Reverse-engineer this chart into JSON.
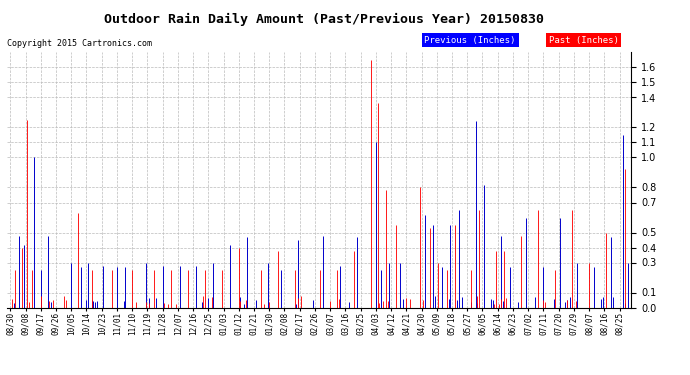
{
  "title": "Outdoor Rain Daily Amount (Past/Previous Year) 20150830",
  "copyright": "Copyright 2015 Cartronics.com",
  "ylim": [
    0.0,
    1.7
  ],
  "yticks": [
    0.0,
    0.1,
    0.3,
    0.4,
    0.5,
    0.7,
    0.8,
    1.0,
    1.1,
    1.2,
    1.4,
    1.5,
    1.6
  ],
  "bg_color": "#ffffff",
  "grid_color": "#bbbbbb",
  "bar_previous_color": "#0000cc",
  "bar_past_color": "#ff0000",
  "n_points": 366,
  "x_tick_labels": [
    "08/30",
    "09/08",
    "09/17",
    "09/26",
    "10/05",
    "10/14",
    "10/23",
    "11/01",
    "11/10",
    "11/19",
    "11/28",
    "12/07",
    "12/16",
    "12/25",
    "01/03",
    "01/12",
    "01/21",
    "01/30",
    "02/08",
    "02/17",
    "02/26",
    "03/07",
    "03/16",
    "03/25",
    "04/03",
    "04/12",
    "04/21",
    "04/30",
    "05/09",
    "05/18",
    "05/27",
    "06/05",
    "06/14",
    "06/23",
    "07/02",
    "07/11",
    "07/20",
    "07/29",
    "08/07",
    "08/16",
    "08/25"
  ],
  "x_tick_positions": [
    0,
    9,
    18,
    27,
    36,
    45,
    54,
    63,
    72,
    81,
    90,
    99,
    108,
    117,
    126,
    135,
    144,
    153,
    162,
    171,
    180,
    189,
    198,
    207,
    216,
    225,
    234,
    243,
    252,
    261,
    270,
    279,
    288,
    297,
    306,
    315,
    324,
    333,
    342,
    351,
    360
  ],
  "prev_spikes_pos": [
    5,
    8,
    14,
    18,
    22,
    36,
    42,
    46,
    55,
    63,
    68,
    80,
    90,
    100,
    110,
    120,
    130,
    140,
    152,
    160,
    170,
    185,
    195,
    205,
    216,
    219,
    224,
    230,
    245,
    250,
    255,
    260,
    265,
    275,
    280,
    290,
    295,
    305,
    315,
    325,
    335,
    345,
    355,
    362,
    365
  ],
  "prev_spikes_h": [
    0.48,
    0.42,
    1.0,
    0.25,
    0.48,
    0.3,
    0.27,
    0.3,
    0.28,
    0.27,
    0.27,
    0.3,
    0.28,
    0.28,
    0.28,
    0.3,
    0.42,
    0.47,
    0.3,
    0.25,
    0.45,
    0.48,
    0.28,
    0.47,
    1.1,
    0.25,
    0.3,
    0.3,
    0.62,
    0.55,
    0.27,
    0.55,
    0.65,
    1.24,
    0.82,
    0.48,
    0.27,
    0.6,
    0.27,
    0.6,
    0.3,
    0.27,
    0.47,
    1.15,
    0.3
  ],
  "past_spikes_pos": [
    3,
    7,
    10,
    13,
    40,
    48,
    60,
    72,
    85,
    95,
    105,
    115,
    125,
    135,
    148,
    158,
    168,
    183,
    193,
    203,
    213,
    217,
    222,
    228,
    242,
    248,
    253,
    258,
    263,
    272,
    277,
    287,
    292,
    302,
    312,
    322,
    332,
    342,
    352,
    363
  ],
  "past_spikes_h": [
    0.25,
    0.4,
    1.25,
    0.25,
    0.63,
    0.25,
    0.25,
    0.25,
    0.25,
    0.25,
    0.25,
    0.25,
    0.25,
    0.4,
    0.25,
    0.38,
    0.25,
    0.25,
    0.25,
    0.38,
    1.65,
    1.36,
    0.78,
    0.55,
    0.8,
    0.53,
    0.3,
    0.25,
    0.55,
    0.25,
    0.65,
    0.38,
    0.38,
    0.48,
    0.65,
    0.25,
    0.65,
    0.3,
    0.5,
    0.92
  ]
}
